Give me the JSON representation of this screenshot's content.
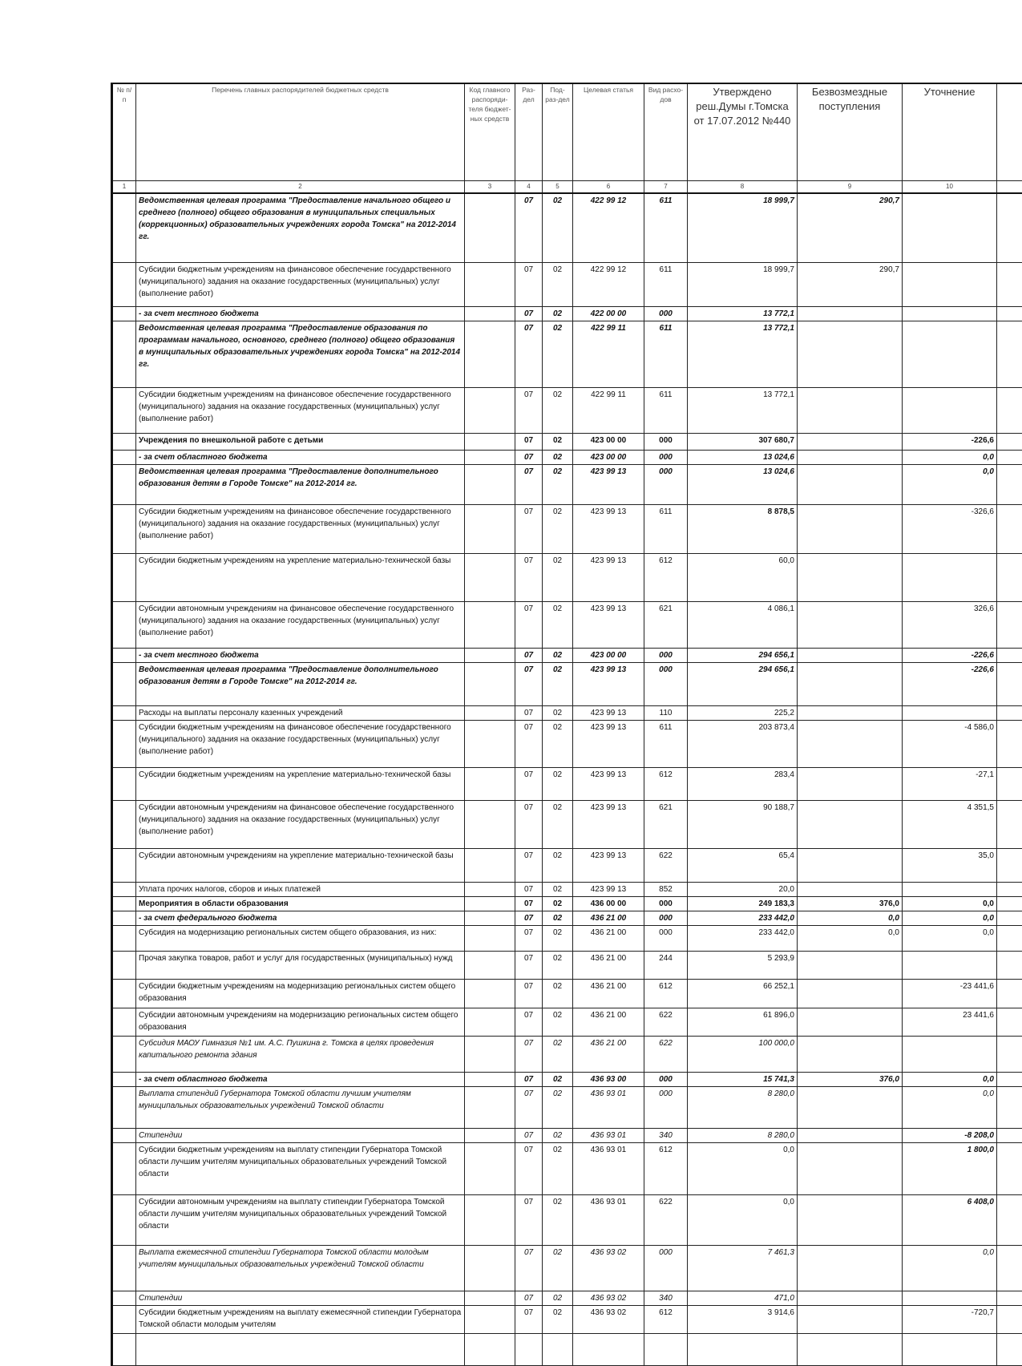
{
  "header": {
    "columns": [
      "№ п/п",
      "Перечень главных распорядителей бюджетных средств",
      "Код главного распоряди-теля бюджет-ных средств",
      "Раз-дел",
      "Под-раз-дел",
      "Целевая статья",
      "Вид расхо-дов",
      "Утверждено реш.Думы г.Томска от 17.07.2012 №440",
      "Безвозмездные поступления",
      "Уточнение",
      ""
    ],
    "numbers": [
      "1",
      "2",
      "3",
      "4",
      "5",
      "6",
      "7",
      "8",
      "9",
      "10",
      ""
    ]
  },
  "rows": [
    {
      "kind": "prog",
      "c": [
        "",
        "Ведомственная целевая программа \"Предоставление начального общего и среднего (полного) общего образования в муниципальных специальных (коррекционных) образовательных учреждениях города Томска\" на 2012-2014 гг.",
        "",
        "07",
        "02",
        "422 99 12",
        "611",
        "18 999,7",
        "290,7",
        "",
        ""
      ]
    },
    {
      "kind": "sub",
      "c": [
        "",
        "Субсидии бюджетным учреждениям на финансовое обеспечение государственного (муниципального) задания на оказание государственных (муниципальных) услуг (выполнение работ)",
        "",
        "07",
        "02",
        "422 99 12",
        "611",
        "18 999,7",
        "290,7",
        "",
        ""
      ]
    },
    {
      "kind": "src",
      "c": [
        "",
        "- за счет местного бюджета",
        "",
        "07",
        "02",
        "422 00 00",
        "000",
        "13 772,1",
        "",
        "",
        ""
      ]
    },
    {
      "kind": "prog",
      "c": [
        "",
        "Ведомственная целевая программа \"Предоставление образования по программам начального, основного, среднего (полного) общего образования в муниципальных образовательных учреждениях города Томска\" на 2012-2014 гг.",
        "",
        "07",
        "02",
        "422 99 11",
        "611",
        "13 772,1",
        "",
        "",
        ""
      ]
    },
    {
      "kind": "sub",
      "c": [
        "",
        "Субсидии бюджетным учреждениям на финансовое обеспечение государственного (муниципального) задания на оказание государственных (муниципальных) услуг (выполнение работ)",
        "",
        "07",
        "02",
        "422 99 11",
        "611",
        "13 772,1",
        "",
        "",
        ""
      ]
    },
    {
      "kind": "inst",
      "c": [
        "",
        "Учреждения по внешкольной работе с детьми",
        "",
        "07",
        "02",
        "423 00 00",
        "000",
        "307 680,7",
        "",
        "-226,6",
        ""
      ]
    },
    {
      "kind": "src",
      "c": [
        "",
        "- за счет областного бюджета",
        "",
        "07",
        "02",
        "423 00 00",
        "000",
        "13 024,6",
        "",
        "0,0",
        ""
      ]
    },
    {
      "kind": "prog",
      "c": [
        "",
        "Ведомственная целевая программа \"Предоставление дополнительного образования детям в Городе Томске\" на 2012-2014 гг.",
        "",
        "07",
        "02",
        "423 99 13",
        "000",
        "13 024,6",
        "",
        "0,0",
        ""
      ]
    },
    {
      "kind": "sub",
      "c": [
        "",
        "Субсидии бюджетным учреждениям на финансовое обеспечение государственного (муниципального) задания на оказание государственных (муниципальных) услуг (выполнение работ)",
        "",
        "07",
        "02",
        "423 99 13",
        "611",
        "8 878,5",
        "",
        "-326,6",
        ""
      ]
    },
    {
      "kind": "sub",
      "c": [
        "",
        "Субсидии бюджетным учреждениям на укрепление материально-технической базы",
        "",
        "07",
        "02",
        "423 99 13",
        "612",
        "60,0",
        "",
        "",
        ""
      ]
    },
    {
      "kind": "sub",
      "c": [
        "",
        "Субсидии автономным учреждениям на финансовое обеспечение государственного (муниципального) задания на оказание государственных (муниципальных) услуг (выполнение работ)",
        "",
        "07",
        "02",
        "423 99 13",
        "621",
        "4 086,1",
        "",
        "326,6",
        ""
      ]
    },
    {
      "kind": "src",
      "c": [
        "",
        "- за счет местного бюджета",
        "",
        "07",
        "02",
        "423 00 00",
        "000",
        "294 656,1",
        "",
        "-226,6",
        ""
      ]
    },
    {
      "kind": "prog",
      "c": [
        "",
        "Ведомственная целевая программа \"Предоставление дополнительного образования детям в Городе Томске\" на 2012-2014 гг.",
        "",
        "07",
        "02",
        "423 99 13",
        "000",
        "294 656,1",
        "",
        "-226,6",
        ""
      ]
    },
    {
      "kind": "sub",
      "c": [
        "",
        "Расходы на выплаты персоналу казенных учреждений",
        "",
        "07",
        "02",
        "423 99 13",
        "110",
        "225,2",
        "",
        "",
        ""
      ]
    },
    {
      "kind": "sub",
      "c": [
        "",
        "Субсидии бюджетным учреждениям на финансовое обеспечение государственного (муниципального) задания на оказание государственных (муниципальных) услуг (выполнение работ)",
        "",
        "07",
        "02",
        "423 99 13",
        "611",
        "203 873,4",
        "",
        "-4 586,0",
        ""
      ]
    },
    {
      "kind": "sub",
      "c": [
        "",
        "Субсидии бюджетным учреждениям на укрепление материально-технической базы",
        "",
        "07",
        "02",
        "423 99 13",
        "612",
        "283,4",
        "",
        "-27,1",
        ""
      ]
    },
    {
      "kind": "sub",
      "c": [
        "",
        "Субсидии автономным учреждениям на финансовое обеспечение государственного (муниципального) задания на оказание государственных (муниципальных) услуг (выполнение работ)",
        "",
        "07",
        "02",
        "423 99 13",
        "621",
        "90 188,7",
        "",
        "4 351,5",
        ""
      ]
    },
    {
      "kind": "sub",
      "c": [
        "",
        "Субсидии автономным учреждениям на укрепление материально-технической базы",
        "",
        "07",
        "02",
        "423 99 13",
        "622",
        "65,4",
        "",
        "35,0",
        ""
      ]
    },
    {
      "kind": "sub",
      "c": [
        "",
        "Уплата прочих налогов, сборов и иных платежей",
        "",
        "07",
        "02",
        "423 99 13",
        "852",
        "20,0",
        "",
        "",
        ""
      ]
    },
    {
      "kind": "head",
      "c": [
        "",
        "Мероприятия в области образования",
        "",
        "07",
        "02",
        "436 00 00",
        "000",
        "249 183,3",
        "376,0",
        "0,0",
        ""
      ]
    },
    {
      "kind": "src",
      "c": [
        "",
        "- за счет федерального бюджета",
        "",
        "07",
        "02",
        "436 21 00",
        "000",
        "233 442,0",
        "0,0",
        "0,0",
        ""
      ]
    },
    {
      "kind": "sans",
      "c": [
        "",
        "Субсидия на модернизацию региональных систем общего образования, из них:",
        "",
        "07",
        "02",
        "436 21 00",
        "000",
        "233 442,0",
        "0,0",
        "0,0",
        ""
      ]
    },
    {
      "kind": "sub",
      "c": [
        "",
        "Прочая закупка товаров, работ и услуг для государственных (муниципальных) нужд",
        "",
        "07",
        "02",
        "436 21 00",
        "244",
        "5 293,9",
        "",
        "",
        ""
      ]
    },
    {
      "kind": "sans",
      "c": [
        "",
        "Субсидии бюджетным учреждениям на модернизацию региональных систем общего образования",
        "",
        "07",
        "02",
        "436 21 00",
        "612",
        "66 252,1",
        "",
        "-23 441,6",
        ""
      ]
    },
    {
      "kind": "sans",
      "c": [
        "",
        "Субсидии автономным учреждениям на модернизацию региональных систем общего образования",
        "",
        "07",
        "02",
        "436 21 00",
        "622",
        "61 896,0",
        "",
        "23 441,6",
        ""
      ]
    },
    {
      "kind": "ital",
      "c": [
        "",
        "Субсидия МАОУ Гимназия №1 им. А.С. Пушкина г. Томска в целях проведения капитального ремонта здания",
        "",
        "07",
        "02",
        "436 21 00",
        "622",
        "100 000,0",
        "",
        "",
        ""
      ]
    },
    {
      "kind": "src",
      "c": [
        "",
        "- за счет областного бюджета",
        "",
        "07",
        "02",
        "436 93 00",
        "000",
        "15 741,3",
        "376,0",
        "0,0",
        ""
      ]
    },
    {
      "kind": "ital",
      "c": [
        "",
        "Выплата стипендий Губернатора Томской области лучшим учителям муниципальных образовательных учреждений Томской области",
        "",
        "07",
        "02",
        "436 93 01",
        "000",
        "8 280,0",
        "",
        "0,0",
        ""
      ]
    },
    {
      "kind": "ital",
      "c": [
        "",
        "Стипендии",
        "",
        "07",
        "02",
        "436 93 01",
        "340",
        "8 280,0",
        "",
        "-8 208,0",
        ""
      ]
    },
    {
      "kind": "sans",
      "c": [
        "",
        "Субсидии бюджетным учреждениям на выплату стипендии Губернатора Томской области лучшим учителям муниципальных образовательных учреждений Томской области",
        "",
        "07",
        "02",
        "436 93 01",
        "612",
        "0,0",
        "",
        "1 800,0",
        ""
      ]
    },
    {
      "kind": "sans",
      "c": [
        "",
        "Субсидии автономным учреждениям на выплату стипендии Губернатора Томской области лучшим учителям муниципальных образовательных учреждений Томской области",
        "",
        "07",
        "02",
        "436 93 01",
        "622",
        "0,0",
        "",
        "6 408,0",
        ""
      ]
    },
    {
      "kind": "ital",
      "c": [
        "",
        "Выплата ежемесячной стипендии Губернатора Томской области молодым учителям муниципальных образовательных учреждений Томской области",
        "",
        "07",
        "02",
        "436 93 02",
        "000",
        "7 461,3",
        "",
        "0,0",
        ""
      ]
    },
    {
      "kind": "ital",
      "c": [
        "",
        "Стипендии",
        "",
        "07",
        "02",
        "436 93 02",
        "340",
        "471,0",
        "",
        "",
        ""
      ]
    },
    {
      "kind": "sans",
      "c": [
        "",
        "Субсидии бюджетным учреждениям на выплату ежемесячной стипендии Губернатора Томской области молодым учителям",
        "",
        "07",
        "02",
        "436 93 02",
        "612",
        "3 914,6",
        "",
        "-720,7",
        ""
      ]
    },
    {
      "kind": "sans",
      "c": [
        "",
        "",
        "",
        "",
        "",
        "",
        "",
        "",
        "",
        "",
        ""
      ]
    }
  ]
}
